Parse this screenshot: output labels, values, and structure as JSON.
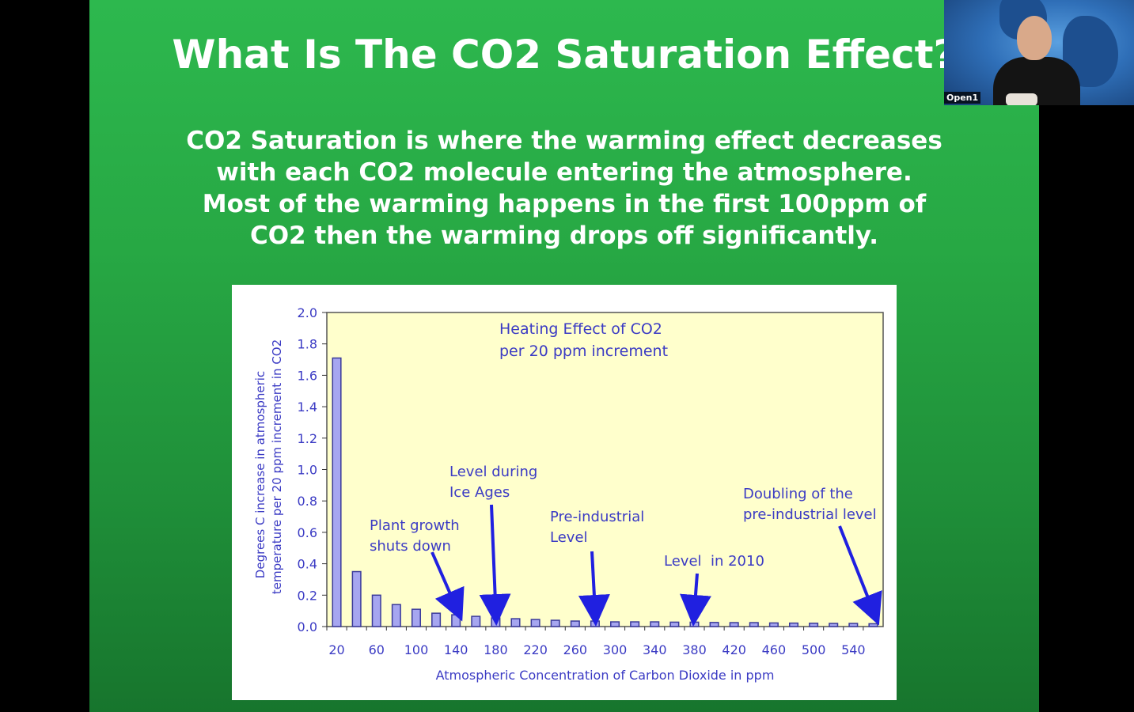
{
  "slide": {
    "title": "What Is The CO2 Saturation Effect?",
    "body_lines": [
      "CO2 Saturation is where the warming effect decreases",
      "with each CO2 molecule entering the atmosphere.",
      "Most of the warming happens in the first 100ppm of",
      "CO2 then the warming drops off significantly."
    ]
  },
  "webcam": {
    "participant_name": "Open1"
  },
  "chart_data": {
    "type": "bar",
    "title": [
      "Heating Effect of CO2",
      "per 20 ppm increment"
    ],
    "xlabel": "Atmospheric Concentration of Carbon Dioxide in ppm",
    "ylabel": [
      "Degrees C increase in atmospheric",
      "temperature per 20 ppm increment in CO2"
    ],
    "ylim": [
      0,
      2.0
    ],
    "y_ticks": [
      "0.0",
      "0.2",
      "0.4",
      "0.6",
      "0.8",
      "1.0",
      "1.2",
      "1.4",
      "1.6",
      "1.8",
      "2.0"
    ],
    "x_tick_labels": [
      "20",
      "60",
      "100",
      "140",
      "180",
      "220",
      "260",
      "300",
      "340",
      "380",
      "420",
      "460",
      "500",
      "540"
    ],
    "categories": [
      20,
      40,
      60,
      80,
      100,
      120,
      140,
      160,
      180,
      200,
      220,
      240,
      260,
      280,
      300,
      320,
      340,
      360,
      380,
      400,
      420,
      440,
      460,
      480,
      500,
      520,
      540,
      560
    ],
    "values": [
      1.71,
      0.35,
      0.2,
      0.14,
      0.11,
      0.085,
      0.075,
      0.065,
      0.055,
      0.05,
      0.045,
      0.04,
      0.035,
      0.035,
      0.03,
      0.03,
      0.03,
      0.028,
      0.028,
      0.026,
      0.025,
      0.025,
      0.023,
      0.022,
      0.021,
      0.02,
      0.02,
      0.018
    ],
    "grid": false,
    "colors": {
      "plot_background": "#ffffcc",
      "bar_fill": "#a6a6f0",
      "bar_stroke": "#3a3a9a",
      "text": "#3b3bc4",
      "arrow": "#2020e0"
    },
    "annotations": [
      {
        "lines": [
          "Plant growth",
          "shuts down"
        ],
        "target_x": 140
      },
      {
        "lines": [
          "Level during",
          "Ice Ages"
        ],
        "target_x": 180
      },
      {
        "lines": [
          "Pre-industrial",
          "Level"
        ],
        "target_x": 280
      },
      {
        "lines": [
          "Level  in 2010"
        ],
        "target_x": 380
      },
      {
        "lines": [
          "Doubling of the",
          "pre-industrial level"
        ],
        "target_x": 560
      }
    ]
  }
}
